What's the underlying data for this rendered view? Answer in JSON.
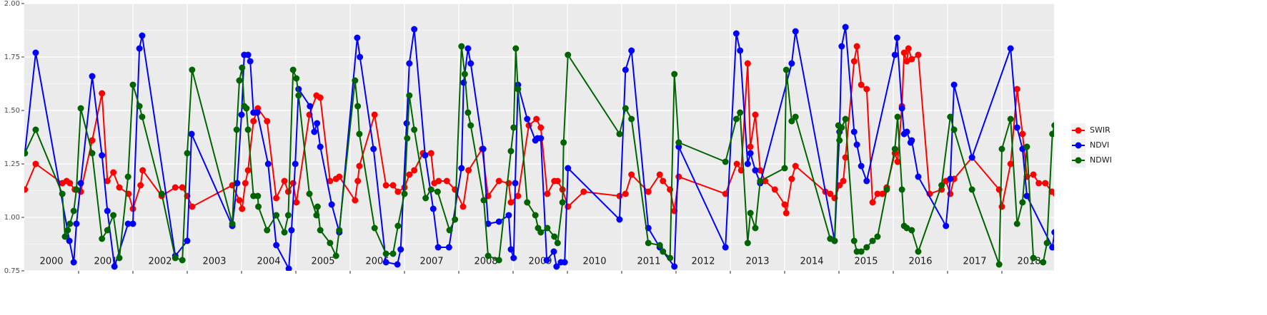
{
  "chart_data": {
    "type": "line",
    "xlim": [
      2000,
      2019
    ],
    "xticks": [
      2001,
      2002,
      2003,
      2004,
      2005,
      2006,
      2007,
      2008,
      2009,
      2010,
      2011,
      2012,
      2013,
      2014,
      2015,
      2016,
      2017,
      2018
    ],
    "year_labels": [
      2000,
      2001,
      2002,
      2003,
      2004,
      2005,
      2006,
      2007,
      2008,
      2009,
      2010,
      2011,
      2012,
      2013,
      2014,
      2015,
      2016,
      2017,
      2018
    ],
    "ylim": [
      0.75,
      2
    ],
    "yticks": [
      0.75,
      {
        "value": 1,
        "label": "1.00"
      },
      1.25,
      {
        "value": 1.5,
        "label": "1.50"
      },
      1.75,
      {
        "value": 2,
        "label": "2.00"
      }
    ],
    "grid": true,
    "legend": "right",
    "series": [
      {
        "name": "SWIR",
        "color": "#ff0000",
        "x": [
          2000.01,
          2000.21,
          2000.7,
          2000.78,
          2000.84,
          2000.93,
          2001.04,
          2001.25,
          2001.43,
          2001.53,
          2001.64,
          2001.75,
          2001.92,
          2002.0,
          2002.14,
          2002.18,
          2002.53,
          2002.78,
          2002.91,
          2003.0,
          2003.09,
          2003.83,
          2003.96,
          2004.01,
          2004.07,
          2004.12,
          2004.22,
          2004.3,
          2004.47,
          2004.64,
          2004.79,
          2004.86,
          2004.95,
          2005.01,
          2005.25,
          2005.38,
          2005.45,
          2005.63,
          2005.74,
          2005.8,
          2006.09,
          2006.14,
          2006.17,
          2006.45,
          2006.66,
          2006.79,
          2006.88,
          2007.0,
          2007.09,
          2007.18,
          2007.34,
          2007.49,
          2007.55,
          2007.63,
          2007.78,
          2007.93,
          2008.08,
          2008.18,
          2008.43,
          2008.54,
          2008.74,
          2008.92,
          2008.96,
          2009.09,
          2009.29,
          2009.43,
          2009.51,
          2009.63,
          2009.76,
          2009.82,
          2009.91,
          2010.01,
          2010.3,
          2010.96,
          2011.07,
          2011.18,
          2011.49,
          2011.7,
          2011.76,
          2011.89,
          2011.97,
          2012.05,
          2012.91,
          2013.12,
          2013.2,
          2013.32,
          2013.37,
          2013.46,
          2013.55,
          2013.64,
          2013.82,
          2014.0,
          2014.03,
          2014.13,
          2014.2,
          2014.75,
          2014.84,
          2014.92,
          2015.01,
          2015.08,
          2015.12,
          2015.28,
          2015.33,
          2015.41,
          2015.51,
          2015.62,
          2015.71,
          2015.8,
          2015.88,
          2016.03,
          2016.08,
          2016.16,
          2016.2,
          2016.25,
          2016.28,
          2016.34,
          2016.46,
          2016.67,
          2016.89,
          2016.97,
          2017.05,
          2017.12,
          2017.45,
          2017.95,
          2018.0,
          2018.16,
          2018.28,
          2018.38,
          2018.46,
          2018.58,
          2018.68,
          2018.8,
          2018.92,
          2018.99
        ],
        "values": [
          1.13,
          1.25,
          1.16,
          1.17,
          1.16,
          1.13,
          1.12,
          1.36,
          1.58,
          1.17,
          1.21,
          1.14,
          1.11,
          1.04,
          1.15,
          1.22,
          1.1,
          1.14,
          1.14,
          1.1,
          1.05,
          1.15,
          1.08,
          1.04,
          1.16,
          1.22,
          1.45,
          1.51,
          1.45,
          1.09,
          1.17,
          1.12,
          1.16,
          1.07,
          1.48,
          1.57,
          1.56,
          1.17,
          1.18,
          1.19,
          1.08,
          1.17,
          1.24,
          1.48,
          1.15,
          1.15,
          1.12,
          1.14,
          1.2,
          1.22,
          1.3,
          1.3,
          1.16,
          1.17,
          1.17,
          1.13,
          1.05,
          1.22,
          1.32,
          1.1,
          1.17,
          1.16,
          1.07,
          1.1,
          1.43,
          1.46,
          1.42,
          1.11,
          1.17,
          1.17,
          1.13,
          1.05,
          1.12,
          1.1,
          1.11,
          1.2,
          1.12,
          1.2,
          1.17,
          1.13,
          1.03,
          1.19,
          1.11,
          1.25,
          1.22,
          1.72,
          1.33,
          1.48,
          1.22,
          1.17,
          1.13,
          1.06,
          1.02,
          1.18,
          1.24,
          1.12,
          1.11,
          1.09,
          1.15,
          1.17,
          1.28,
          1.73,
          1.8,
          1.62,
          1.6,
          1.07,
          1.11,
          1.11,
          1.14,
          1.3,
          1.26,
          1.52,
          1.77,
          1.73,
          1.79,
          1.74,
          1.76,
          1.11,
          1.13,
          1.17,
          1.11,
          1.18,
          1.28,
          1.13,
          1.05,
          1.25,
          1.6,
          1.39,
          1.19,
          1.2,
          1.16,
          1.16,
          1.12,
          1.11
        ]
      },
      {
        "name": "NDVI",
        "color": "#0000ff",
        "x": [
          2000.01,
          2000.21,
          2000.83,
          2000.91,
          2000.96,
          2001.04,
          2001.25,
          2001.43,
          2001.53,
          2001.66,
          2001.91,
          2002.0,
          2002.12,
          2002.17,
          2002.78,
          2003.0,
          2003.08,
          2003.83,
          2003.92,
          2004.0,
          2004.05,
          2004.12,
          2004.16,
          2004.22,
          2004.29,
          2004.49,
          2004.64,
          2004.87,
          2004.92,
          2004.99,
          2005.05,
          2005.26,
          2005.34,
          2005.39,
          2005.45,
          2005.66,
          2005.8,
          2006.13,
          2006.18,
          2006.43,
          2006.66,
          2006.87,
          2006.93,
          2007.04,
          2007.09,
          2007.18,
          2007.38,
          2007.53,
          2007.62,
          2007.82,
          2008.05,
          2008.09,
          2008.17,
          2008.22,
          2008.45,
          2008.54,
          2008.74,
          2008.92,
          2008.96,
          2009.01,
          2009.04,
          2009.09,
          2009.26,
          2009.41,
          2009.45,
          2009.51,
          2009.62,
          2009.75,
          2009.8,
          2009.88,
          2009.95,
          2010.01,
          2010.96,
          2011.07,
          2011.18,
          2011.49,
          2011.7,
          2011.97,
          2012.05,
          2012.91,
          2013.11,
          2013.18,
          2013.32,
          2013.37,
          2013.46,
          2013.55,
          2014.13,
          2014.2,
          2014.92,
          2015.01,
          2015.05,
          2015.12,
          2015.28,
          2015.33,
          2015.41,
          2015.51,
          2016.03,
          2016.07,
          2016.16,
          2016.2,
          2016.25,
          2016.32,
          2016.34,
          2016.46,
          2016.97,
          2017.05,
          2017.12,
          2017.45,
          2018.16,
          2018.28,
          2018.38,
          2018.46,
          2018.93,
          2018.97
        ],
        "values": [
          1.3,
          1.77,
          0.89,
          0.79,
          0.97,
          1.16,
          1.66,
          1.29,
          1.03,
          0.77,
          0.97,
          0.97,
          1.79,
          1.85,
          0.82,
          0.89,
          1.39,
          0.96,
          1.16,
          1.48,
          1.76,
          1.76,
          1.73,
          1.49,
          1.49,
          1.25,
          0.87,
          0.76,
          0.94,
          1.25,
          1.6,
          1.52,
          1.4,
          1.44,
          1.33,
          1.06,
          0.93,
          1.84,
          1.75,
          1.32,
          0.79,
          0.78,
          0.85,
          1.44,
          1.72,
          1.88,
          1.29,
          1.04,
          0.86,
          0.86,
          1.23,
          1.63,
          1.79,
          1.72,
          1.32,
          0.97,
          0.98,
          1.01,
          0.85,
          0.81,
          1.16,
          1.62,
          1.46,
          1.36,
          1.37,
          1.37,
          0.8,
          0.84,
          0.77,
          0.79,
          0.79,
          1.23,
          0.99,
          1.69,
          1.78,
          0.95,
          0.86,
          0.77,
          1.33,
          0.86,
          1.86,
          1.78,
          1.25,
          1.3,
          1.22,
          1.16,
          1.72,
          1.87,
          0.89,
          1.4,
          1.8,
          1.89,
          1.4,
          1.34,
          1.24,
          1.17,
          1.76,
          1.84,
          1.51,
          1.39,
          1.4,
          1.35,
          1.36,
          1.19,
          0.96,
          1.18,
          1.62,
          1.28,
          1.79,
          1.42,
          1.32,
          1.1,
          0.86,
          0.93
        ]
      },
      {
        "name": "NDWI",
        "color": "#006400",
        "x": [
          2000.01,
          2000.21,
          2000.7,
          2000.75,
          2000.8,
          2000.84,
          2000.91,
          2000.96,
          2001.04,
          2001.25,
          2001.43,
          2001.53,
          2001.64,
          2001.75,
          2001.91,
          2002.0,
          2002.12,
          2002.17,
          2002.53,
          2002.78,
          2002.91,
          2003.0,
          2003.09,
          2003.83,
          2003.91,
          2003.96,
          2004.01,
          2004.05,
          2004.09,
          2004.12,
          2004.22,
          2004.3,
          2004.31,
          2004.47,
          2004.64,
          2004.79,
          2004.86,
          2004.95,
          2005.01,
          2005.05,
          2005.25,
          2005.38,
          2005.4,
          2005.45,
          2005.63,
          2005.74,
          2005.8,
          2006.09,
          2006.14,
          2006.17,
          2006.45,
          2006.66,
          2006.79,
          2006.88,
          2007.0,
          2007.05,
          2007.09,
          2007.18,
          2007.39,
          2007.49,
          2007.61,
          2007.83,
          2007.93,
          2008.05,
          2008.11,
          2008.17,
          2008.22,
          2008.46,
          2008.54,
          2008.74,
          2008.96,
          2009.01,
          2009.05,
          2009.09,
          2009.26,
          2009.41,
          2009.46,
          2009.51,
          2009.63,
          2009.76,
          2009.82,
          2009.91,
          2009.93,
          2010.01,
          2010.96,
          2011.07,
          2011.18,
          2011.49,
          2011.7,
          2011.76,
          2011.89,
          2011.97,
          2012.05,
          2012.91,
          2013.11,
          2013.18,
          2013.32,
          2013.37,
          2013.46,
          2013.55,
          2014.0,
          2014.03,
          2014.13,
          2014.2,
          2014.84,
          2014.92,
          2014.99,
          2015.01,
          2015.05,
          2015.12,
          2015.28,
          2015.33,
          2015.41,
          2015.51,
          2015.62,
          2015.71,
          2015.88,
          2016.03,
          2016.08,
          2016.16,
          2016.2,
          2016.25,
          2016.34,
          2016.46,
          2016.89,
          2017.05,
          2017.12,
          2017.45,
          2017.95,
          2018.0,
          2018.16,
          2018.28,
          2018.38,
          2018.46,
          2018.58,
          2018.76,
          2018.83,
          2018.93,
          2018.97
        ],
        "values": [
          1.3,
          1.41,
          1.11,
          0.91,
          0.94,
          0.97,
          1.03,
          1.13,
          1.51,
          1.3,
          0.9,
          0.94,
          1.01,
          0.81,
          1.19,
          1.62,
          1.52,
          1.47,
          1.11,
          0.81,
          0.8,
          1.3,
          1.69,
          0.97,
          1.41,
          1.64,
          1.7,
          1.52,
          1.51,
          1.41,
          1.1,
          1.1,
          1.05,
          0.94,
          1.01,
          0.93,
          1.01,
          1.69,
          1.65,
          1.57,
          1.11,
          1.01,
          1.05,
          0.94,
          0.88,
          0.82,
          0.94,
          1.64,
          1.52,
          1.39,
          0.95,
          0.83,
          0.83,
          0.96,
          1.11,
          1.37,
          1.57,
          1.41,
          1.09,
          1.13,
          1.12,
          0.94,
          0.99,
          1.8,
          1.67,
          1.49,
          1.43,
          1.08,
          0.82,
          0.8,
          1.31,
          1.42,
          1.79,
          1.6,
          1.07,
          1.01,
          0.95,
          0.93,
          0.95,
          0.91,
          0.88,
          1.07,
          1.35,
          1.76,
          1.39,
          1.51,
          1.46,
          0.88,
          0.87,
          0.84,
          0.81,
          1.67,
          1.35,
          1.26,
          1.46,
          1.49,
          0.88,
          1.02,
          0.95,
          1.17,
          1.23,
          1.69,
          1.45,
          1.47,
          0.9,
          0.89,
          1.43,
          1.36,
          1.42,
          1.46,
          0.89,
          0.84,
          0.84,
          0.86,
          0.89,
          0.91,
          1.13,
          1.32,
          1.47,
          1.13,
          0.96,
          0.95,
          0.94,
          0.84,
          1.15,
          1.47,
          1.41,
          1.13,
          0.78,
          1.32,
          1.46,
          0.97,
          1.07,
          1.33,
          0.81,
          0.79,
          0.88,
          1.39,
          1.43
        ]
      }
    ]
  }
}
